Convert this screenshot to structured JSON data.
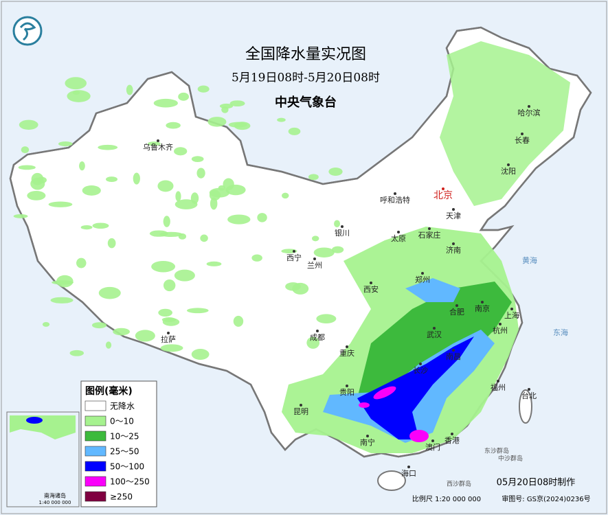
{
  "header": {
    "title": "全国降水量实况图",
    "subtitle": "5月19日08时-5月20日08时",
    "agency": "中央气象台"
  },
  "cities": [
    {
      "name": "乌鲁木齐"
    },
    {
      "name": "哈尔滨"
    },
    {
      "name": "长春"
    },
    {
      "name": "沈阳"
    },
    {
      "name": "北京",
      "capital": true
    },
    {
      "name": "天津"
    },
    {
      "name": "呼和浩特"
    },
    {
      "name": "石家庄"
    },
    {
      "name": "太原"
    },
    {
      "name": "银川"
    },
    {
      "name": "济南"
    },
    {
      "name": "西宁"
    },
    {
      "name": "兰州"
    },
    {
      "name": "郑州"
    },
    {
      "name": "西安"
    },
    {
      "name": "合肥"
    },
    {
      "name": "南京"
    },
    {
      "name": "上海"
    },
    {
      "name": "武汉"
    },
    {
      "name": "杭州"
    },
    {
      "name": "成都"
    },
    {
      "name": "重庆"
    },
    {
      "name": "南昌"
    },
    {
      "name": "长沙"
    },
    {
      "name": "拉萨"
    },
    {
      "name": "福州"
    },
    {
      "name": "台北"
    },
    {
      "name": "贵阳"
    },
    {
      "name": "昆明"
    },
    {
      "name": "南宁"
    },
    {
      "name": "香港"
    },
    {
      "name": "澳门"
    },
    {
      "name": "海口"
    }
  ],
  "seas": [
    "黄海",
    "东海"
  ],
  "islands": [
    "东沙群岛",
    "中沙群岛",
    "西沙群岛"
  ],
  "legend": {
    "title": "图例(毫米)",
    "items": [
      {
        "label": "无降水",
        "color": "#ffffff"
      },
      {
        "label": "0～10",
        "color": "#a6f28f"
      },
      {
        "label": "10～25",
        "color": "#3dba3d"
      },
      {
        "label": "25～50",
        "color": "#61b8ff"
      },
      {
        "label": "50～100",
        "color": "#0000ff"
      },
      {
        "label": "100～250",
        "color": "#fa00fa"
      },
      {
        "label": "≥250",
        "color": "#800040"
      }
    ]
  },
  "inset": {
    "title": "南海诸岛",
    "scale": "1:40 000 000"
  },
  "footer": {
    "made": "05月20日08时制作",
    "scale": "比例尺 1:20 000 000",
    "approval": "审图号: GS京(2024)0236号"
  }
}
